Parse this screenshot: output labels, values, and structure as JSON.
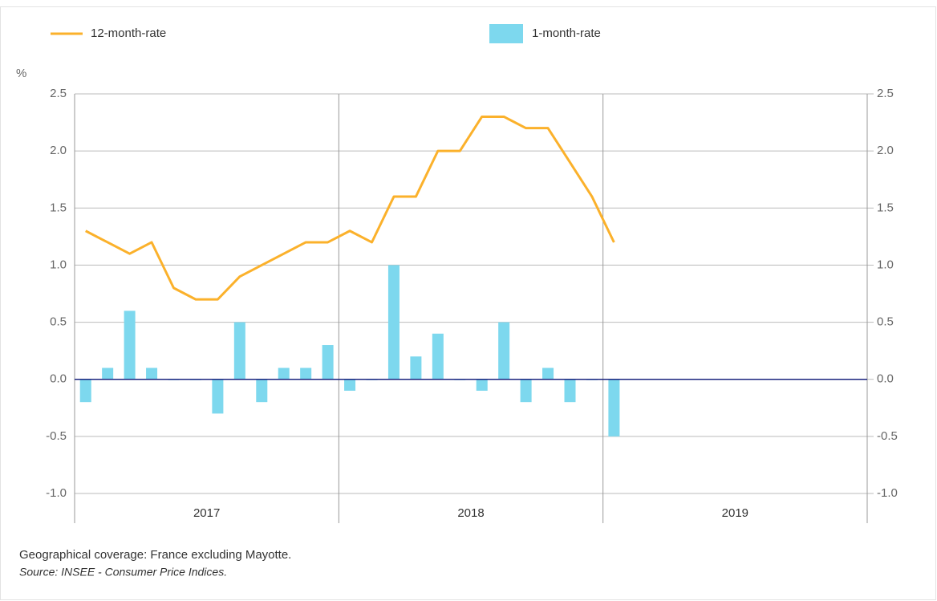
{
  "chart_data": {
    "type": "bar_line",
    "y_unit": "%",
    "categories": [
      null,
      null,
      null,
      null,
      null,
      null,
      null,
      null,
      null,
      null,
      null,
      null,
      null,
      null,
      null,
      null,
      null,
      null,
      null,
      null,
      null,
      null,
      null,
      null,
      null
    ],
    "year_labels": [
      "2017",
      "2018",
      "2019"
    ],
    "series": [
      {
        "name": "12-month-rate",
        "type": "line",
        "color": "#fbb12b",
        "values": [
          1.3,
          1.2,
          1.1,
          1.2,
          0.8,
          0.7,
          0.7,
          0.9,
          1.0,
          1.1,
          1.2,
          1.2,
          1.3,
          1.2,
          1.6,
          1.6,
          2.0,
          2.0,
          2.3,
          2.3,
          2.2,
          2.2,
          1.9,
          1.6,
          1.2
        ]
      },
      {
        "name": "1-month-rate",
        "type": "bar",
        "color": "#7dd8ee",
        "values": [
          -0.2,
          0.1,
          0.6,
          0.1,
          0.0,
          0.0,
          -0.3,
          0.5,
          -0.2,
          0.1,
          0.1,
          0.3,
          -0.1,
          0.0,
          1.0,
          0.2,
          0.4,
          0.0,
          -0.1,
          0.5,
          -0.2,
          0.1,
          -0.2,
          0.0,
          -0.5
        ]
      }
    ],
    "ylim": [
      -1,
      2.5
    ],
    "yticks": [
      {
        "value": -1,
        "label": "-1.0"
      },
      -0.5,
      {
        "value": 0,
        "label": "0.0"
      },
      0.5,
      {
        "value": 1,
        "label": "1.0"
      },
      1.5,
      {
        "value": 2,
        "label": "2.0"
      },
      2.5
    ],
    "grid": true,
    "notes": [
      "Geographical coverage: France excluding Mayotte.",
      "Source: INSEE - Consumer Price Indices."
    ]
  }
}
